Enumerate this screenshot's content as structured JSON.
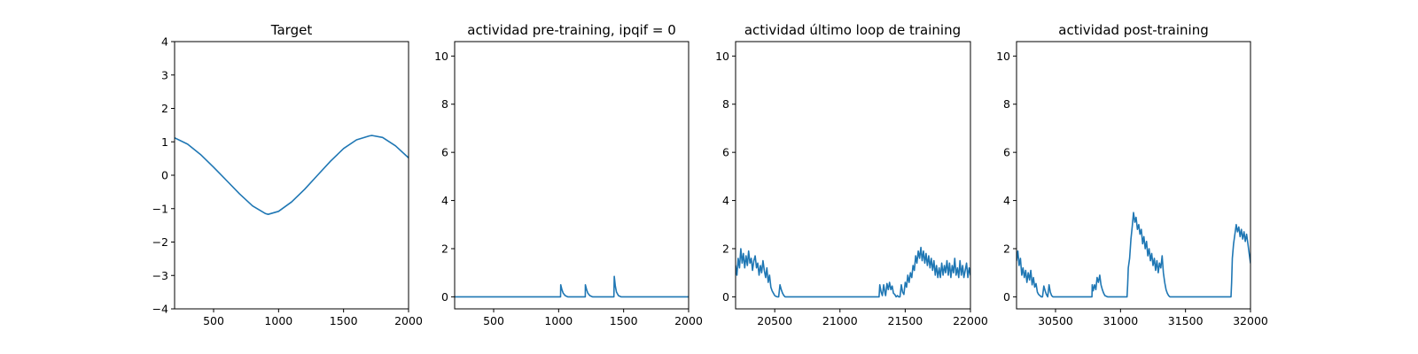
{
  "colors": {
    "series": "#1f77b4",
    "axes": "#000000",
    "background": "#ffffff"
  },
  "chart_data": [
    {
      "type": "line",
      "title": "Target",
      "xlim": [
        200,
        2000
      ],
      "ylim": [
        -4,
        4
      ],
      "xticks": [
        500,
        1000,
        1500,
        2000
      ],
      "yticks": [
        -4,
        -3,
        -2,
        -1,
        0,
        1,
        2,
        3,
        4
      ],
      "xtick_labels": [
        "500",
        "1000",
        "1500",
        "2000"
      ],
      "ytick_labels": [
        "−4",
        "−3",
        "−2",
        "−1",
        "0",
        "1",
        "2",
        "3",
        "4"
      ],
      "grid": false,
      "series": [
        {
          "x": [
            200,
            300,
            400,
            500,
            600,
            700,
            800,
            900,
            920,
            1000,
            1100,
            1200,
            1300,
            1400,
            1500,
            1600,
            1700,
            1720,
            1800,
            1900,
            2000
          ],
          "y": [
            1.12,
            0.93,
            0.62,
            0.24,
            -0.16,
            -0.56,
            -0.92,
            -1.15,
            -1.17,
            -1.08,
            -0.8,
            -0.42,
            0.0,
            0.42,
            0.8,
            1.06,
            1.18,
            1.19,
            1.13,
            0.88,
            0.52
          ]
        }
      ]
    },
    {
      "type": "line",
      "title": "actividad pre-training, ipqif = 0",
      "xlim": [
        200,
        2000
      ],
      "ylim": [
        -0.5,
        10.6
      ],
      "xticks": [
        500,
        1000,
        1500,
        2000
      ],
      "yticks": [
        0,
        2,
        4,
        6,
        8,
        10
      ],
      "xtick_labels": [
        "500",
        "1000",
        "1500",
        "2000"
      ],
      "ytick_labels": [
        "0",
        "2",
        "4",
        "6",
        "8",
        "10"
      ],
      "grid": false,
      "series": [
        {
          "x": [
            200,
            1015,
            1016,
            1025,
            1035,
            1050,
            1070,
            1205,
            1206,
            1215,
            1225,
            1240,
            1260,
            1425,
            1428,
            1436,
            1445,
            1460,
            1480,
            2000
          ],
          "y": [
            0,
            0,
            0.5,
            0.3,
            0.15,
            0.05,
            0,
            0,
            0.5,
            0.3,
            0.15,
            0.05,
            0,
            0,
            0.85,
            0.45,
            0.2,
            0.05,
            0,
            0
          ]
        }
      ]
    },
    {
      "type": "line",
      "title": "actividad último loop de training",
      "xlim": [
        20200,
        22000
      ],
      "ylim": [
        -0.5,
        10.6
      ],
      "xticks": [
        20500,
        21000,
        21500,
        22000
      ],
      "yticks": [
        0,
        2,
        4,
        6,
        8,
        10
      ],
      "xtick_labels": [
        "20500",
        "21000",
        "21500",
        "22000"
      ],
      "ytick_labels": [
        "0",
        "2",
        "4",
        "6",
        "8",
        "10"
      ],
      "grid": false,
      "series": [
        {
          "x": [
            20200,
            20210,
            20220,
            20230,
            20240,
            20250,
            20260,
            20270,
            20280,
            20290,
            20300,
            20310,
            20320,
            20330,
            20340,
            20350,
            20360,
            20370,
            20380,
            20390,
            20400,
            20410,
            20420,
            20430,
            20440,
            20450,
            20460,
            20470,
            20480,
            20490,
            20500,
            20510,
            20520,
            20530,
            20540,
            20550,
            20560,
            20570,
            20580,
            20600,
            21300,
            21305,
            21315,
            21325,
            21335,
            21345,
            21350,
            21360,
            21370,
            21380,
            21390,
            21400,
            21410,
            21420,
            21430,
            21440,
            21450,
            21460,
            21470,
            21480,
            21490,
            21500,
            21510,
            21520,
            21530,
            21540,
            21550,
            21560,
            21570,
            21580,
            21590,
            21600,
            21610,
            21620,
            21630,
            21640,
            21650,
            21660,
            21670,
            21680,
            21690,
            21700,
            21710,
            21720,
            21730,
            21740,
            21750,
            21760,
            21770,
            21780,
            21790,
            21800,
            21810,
            21820,
            21830,
            21840,
            21850,
            21860,
            21870,
            21880,
            21890,
            21900,
            21910,
            21920,
            21930,
            21940,
            21950,
            21960,
            21970,
            21980,
            21990,
            22000
          ],
          "y": [
            1.3,
            0.9,
            1.6,
            1.2,
            2.0,
            1.4,
            1.8,
            1.2,
            1.7,
            1.3,
            1.9,
            1.4,
            1.6,
            1.1,
            1.5,
            1.7,
            1.2,
            1.4,
            0.9,
            1.3,
            1.0,
            1.5,
            1.1,
            0.8,
            1.2,
            0.6,
            0.9,
            0.4,
            0.25,
            0.15,
            0.05,
            0.02,
            0.0,
            0.0,
            0.5,
            0.3,
            0.15,
            0.05,
            0.0,
            0.0,
            0.0,
            0.5,
            0.2,
            0.05,
            0.5,
            0.15,
            0.05,
            0.55,
            0.3,
            0.6,
            0.3,
            0.45,
            0.15,
            0.1,
            0.0,
            0.05,
            0.0,
            0.0,
            0.5,
            0.2,
            0.1,
            0.6,
            0.4,
            0.9,
            0.6,
            1.0,
            0.8,
            1.3,
            1.1,
            1.7,
            1.4,
            1.9,
            1.6,
            2.05,
            1.5,
            1.9,
            1.4,
            1.8,
            1.3,
            1.7,
            1.2,
            1.6,
            1.1,
            1.5,
            0.9,
            1.3,
            0.8,
            1.2,
            0.8,
            1.4,
            0.9,
            1.3,
            1.0,
            1.5,
            0.9,
            1.4,
            0.8,
            1.3,
            1.0,
            1.6,
            0.9,
            1.2,
            0.8,
            1.5,
            0.9,
            1.3,
            0.8,
            1.1,
            1.4,
            0.8,
            1.2,
            0.9
          ]
        }
      ]
    },
    {
      "type": "line",
      "title": "actividad post-training",
      "xlim": [
        30200,
        32000
      ],
      "ylim": [
        -0.5,
        10.6
      ],
      "xticks": [
        30500,
        31000,
        31500,
        32000
      ],
      "yticks": [
        0,
        2,
        4,
        6,
        8,
        10
      ],
      "xtick_labels": [
        "30500",
        "31000",
        "31500",
        "32000"
      ],
      "ytick_labels": [
        "0",
        "2",
        "4",
        "6",
        "8",
        "10"
      ],
      "grid": false,
      "series": [
        {
          "x": [
            30200,
            30210,
            30220,
            30230,
            30240,
            30250,
            30260,
            30270,
            30280,
            30290,
            30300,
            30310,
            30320,
            30330,
            30340,
            30350,
            30360,
            30370,
            30380,
            30390,
            30400,
            30410,
            30420,
            30430,
            30440,
            30450,
            30460,
            30470,
            30480,
            30500,
            30780,
            30782,
            30790,
            30800,
            30810,
            30820,
            30830,
            30840,
            30850,
            30860,
            30870,
            30880,
            30900,
            31050,
            31055,
            31060,
            31070,
            31080,
            31090,
            31100,
            31110,
            31120,
            31130,
            31140,
            31150,
            31160,
            31170,
            31180,
            31190,
            31200,
            31210,
            31220,
            31230,
            31240,
            31250,
            31260,
            31270,
            31280,
            31290,
            31300,
            31310,
            31320,
            31330,
            31340,
            31350,
            31360,
            31370,
            31380,
            31390,
            31400,
            31850,
            31855,
            31860,
            31870,
            31880,
            31890,
            31900,
            31910,
            31920,
            31930,
            31940,
            31950,
            31960,
            31970,
            31980,
            31990,
            32000
          ],
          "y": [
            1.5,
            1.9,
            1.3,
            1.6,
            0.9,
            1.2,
            0.8,
            1.1,
            0.6,
            1.0,
            0.7,
            1.1,
            0.5,
            0.8,
            0.4,
            0.55,
            0.2,
            0.1,
            0.05,
            0.0,
            0.0,
            0.45,
            0.25,
            0.1,
            0.0,
            0.5,
            0.2,
            0.05,
            0.0,
            0.0,
            0.0,
            0.5,
            0.25,
            0.5,
            0.3,
            0.8,
            0.6,
            0.9,
            0.5,
            0.3,
            0.15,
            0.05,
            0.0,
            0.0,
            0.5,
            1.2,
            1.6,
            2.4,
            2.9,
            3.5,
            3.1,
            3.3,
            2.8,
            3.0,
            2.6,
            2.8,
            2.2,
            2.5,
            2.0,
            2.3,
            1.7,
            2.0,
            1.5,
            1.8,
            1.3,
            1.6,
            1.1,
            1.5,
            1.0,
            1.4,
            1.2,
            1.7,
            1.0,
            0.6,
            0.3,
            0.15,
            0.05,
            0.0,
            0.0,
            0.0,
            0.0,
            0.6,
            1.6,
            2.2,
            2.6,
            3.0,
            2.7,
            2.9,
            2.5,
            2.8,
            2.4,
            2.7,
            2.3,
            2.6,
            2.2,
            1.8,
            1.4
          ]
        }
      ]
    }
  ]
}
